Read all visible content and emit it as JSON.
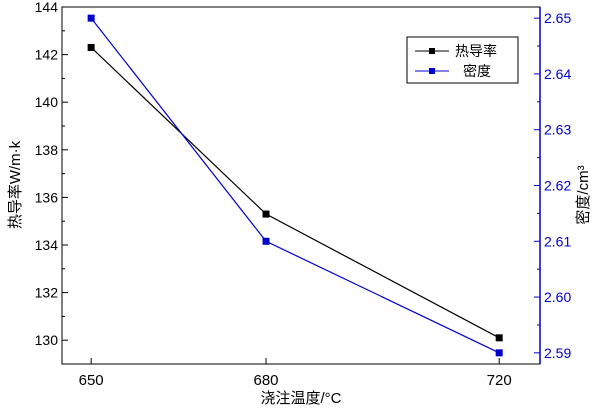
{
  "chart_data": {
    "type": "line",
    "xlabel": "浇注温度/°C",
    "ylabel_left": "热导率W/m·k",
    "ylabel_right": "密度/cm³",
    "x_ticks": [
      "650",
      "680",
      "720"
    ],
    "x_ticks_values": [
      650,
      680,
      720
    ],
    "xlim": [
      645,
      727
    ],
    "ylim_left": [
      129,
      144
    ],
    "ylim_right": [
      2.588,
      2.652
    ],
    "y_left_ticks": [
      130,
      132,
      134,
      136,
      138,
      140,
      142,
      144
    ],
    "y_right_ticks": [
      2.59,
      2.6,
      2.61,
      2.62,
      2.63,
      2.64,
      2.65
    ],
    "y_right_tick_labels": [
      "2.59",
      "2.60",
      "2.61",
      "2.62",
      "2.63",
      "2.64",
      "2.65"
    ],
    "series": [
      {
        "name": "热导率",
        "axis": "left",
        "color": "#000000",
        "x": [
          650,
          680,
          720
        ],
        "values": [
          142.3,
          135.3,
          130.1
        ]
      },
      {
        "name": "密度",
        "axis": "right",
        "color": "#0000cc",
        "x": [
          650,
          680,
          720
        ],
        "values": [
          2.65,
          2.61,
          2.59
        ]
      }
    ],
    "legend_position": "top-right",
    "right_axis_color": "#0000cc"
  }
}
